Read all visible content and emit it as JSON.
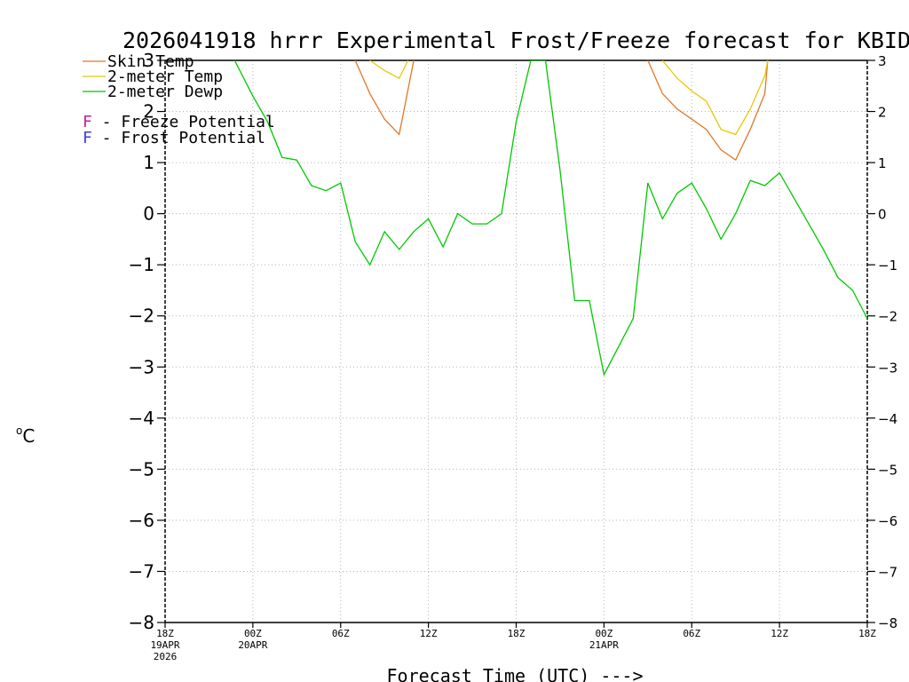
{
  "chart_data": {
    "type": "line",
    "title": "2026041918 hrrr Experimental Frost/Freeze forecast for KBID",
    "xlabel": "Forecast Time (UTC) --->",
    "ylabel_degree": "o",
    "ylabel_unit": "C",
    "ylim": [
      -8,
      3
    ],
    "xlim": [
      0,
      48
    ],
    "grid": true,
    "y_ticks": [
      -8,
      -7,
      -6,
      -5,
      -4,
      -3,
      -2,
      -1,
      0,
      1,
      2,
      3
    ],
    "y_tick_labels": [
      "−8",
      "−7",
      "−6",
      "−5",
      "−4",
      "−3",
      "−2",
      "−1",
      "0",
      "1",
      "2",
      "3"
    ],
    "x_ticks": [
      {
        "h": 0,
        "label": "18Z",
        "date": "19APR",
        "year": "2026"
      },
      {
        "h": 6,
        "label": "00Z",
        "date": "20APR",
        "year": ""
      },
      {
        "h": 12,
        "label": "06Z",
        "date": "",
        "year": ""
      },
      {
        "h": 18,
        "label": "12Z",
        "date": "",
        "year": ""
      },
      {
        "h": 24,
        "label": "18Z",
        "date": "",
        "year": ""
      },
      {
        "h": 30,
        "label": "00Z",
        "date": "21APR",
        "year": ""
      },
      {
        "h": 36,
        "label": "06Z",
        "date": "",
        "year": ""
      },
      {
        "h": 42,
        "label": "12Z",
        "date": "",
        "year": ""
      },
      {
        "h": 48,
        "label": "18Z",
        "date": "",
        "year": ""
      }
    ],
    "legend": [
      {
        "label": "Skin Temp",
        "color": "#e07828"
      },
      {
        "label": "2-meter Temp",
        "color": "#e8c800"
      },
      {
        "label": "2-meter Dewp",
        "color": "#00c800"
      }
    ],
    "potential_legend": [
      {
        "letter": "F",
        "label": " - Freeze Potential",
        "color": "#c81e96"
      },
      {
        "letter": "F",
        "label": " - Frost Potential",
        "color": "#3c3cf0"
      }
    ],
    "series": [
      {
        "name": "Skin Temp",
        "color": "#e07828",
        "segments": [
          [
            [
              13,
              3.0
            ],
            [
              14,
              2.35
            ],
            [
              15,
              1.85
            ],
            [
              16,
              1.55
            ],
            [
              17,
              3.0
            ]
          ],
          [
            [
              33,
              3.0
            ],
            [
              34,
              2.35
            ],
            [
              35,
              2.05
            ],
            [
              36,
              1.85
            ],
            [
              37,
              1.65
            ],
            [
              38,
              1.25
            ],
            [
              39,
              1.05
            ],
            [
              40,
              1.65
            ],
            [
              41,
              2.35
            ],
            [
              41.2,
              3.0
            ]
          ]
        ]
      },
      {
        "name": "2-meter Temp",
        "color": "#e8c800",
        "segments": [
          [
            [
              14,
              3.0
            ],
            [
              15,
              2.8
            ],
            [
              16,
              2.65
            ],
            [
              16.6,
              3.0
            ]
          ],
          [
            [
              34,
              3.0
            ],
            [
              35,
              2.65
            ],
            [
              36,
              2.4
            ],
            [
              37,
              2.2
            ],
            [
              38,
              1.65
            ],
            [
              39,
              1.55
            ],
            [
              40,
              2.05
            ],
            [
              41,
              2.7
            ],
            [
              41.2,
              3.0
            ]
          ]
        ]
      },
      {
        "name": "2-meter Dewp",
        "color": "#00c800",
        "segments": [
          [
            [
              4.75,
              3.0
            ],
            [
              6,
              2.3
            ],
            [
              7,
              1.8
            ],
            [
              8,
              1.1
            ],
            [
              9,
              1.05
            ],
            [
              10,
              0.55
            ],
            [
              11,
              0.45
            ],
            [
              12,
              0.6
            ],
            [
              13,
              -0.55
            ],
            [
              14,
              -1.0
            ],
            [
              15,
              -0.35
            ],
            [
              16,
              -0.7
            ],
            [
              17,
              -0.35
            ],
            [
              18,
              -0.1
            ],
            [
              19,
              -0.65
            ],
            [
              20,
              0.0
            ],
            [
              21,
              -0.2
            ],
            [
              22,
              -0.2
            ],
            [
              23,
              0.0
            ],
            [
              24,
              1.8
            ],
            [
              25,
              3.0
            ],
            [
              26,
              3.0
            ],
            [
              27,
              0.85
            ],
            [
              28,
              -1.7
            ],
            [
              29,
              -1.7
            ],
            [
              30,
              -3.15
            ],
            [
              31,
              -2.6
            ],
            [
              32,
              -2.05
            ],
            [
              33,
              0.6
            ],
            [
              34,
              -0.1
            ],
            [
              35,
              0.4
            ],
            [
              36,
              0.6
            ],
            [
              37,
              0.1
            ],
            [
              38,
              -0.5
            ],
            [
              39,
              0.0
            ],
            [
              40,
              0.65
            ],
            [
              41,
              0.55
            ],
            [
              42,
              0.8
            ],
            [
              43,
              0.3
            ],
            [
              44,
              -0.2
            ],
            [
              45,
              -0.7
            ],
            [
              46,
              -1.25
            ],
            [
              47,
              -1.5
            ],
            [
              48,
              -2.05
            ]
          ]
        ]
      }
    ]
  }
}
